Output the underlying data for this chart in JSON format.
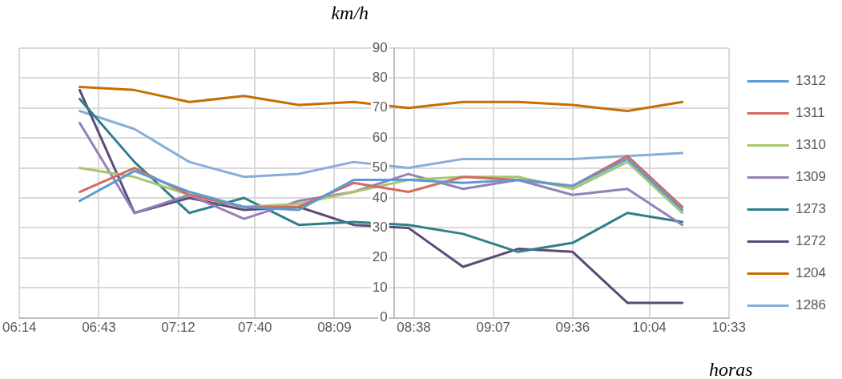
{
  "chart_data": {
    "type": "line",
    "xlabel": "horas",
    "ylabel": "km/h",
    "x": [
      6.6,
      6.933,
      7.267,
      7.6,
      7.933,
      8.267,
      8.6,
      8.933,
      9.267,
      9.6,
      9.933,
      10.267
    ],
    "xlim": [
      6.2333,
      10.55
    ],
    "xticks": [
      {
        "value": 6.2333,
        "label": "06:14"
      },
      {
        "value": 6.7167,
        "label": "06:43"
      },
      {
        "value": 7.2,
        "label": "07:12"
      },
      {
        "value": 7.6667,
        "label": "07:40"
      },
      {
        "value": 8.15,
        "label": "08:09"
      },
      {
        "value": 8.6333,
        "label": "08:38"
      },
      {
        "value": 9.1167,
        "label": "09:07"
      },
      {
        "value": 9.6,
        "label": "09:36"
      },
      {
        "value": 10.0667,
        "label": "10:04"
      },
      {
        "value": 10.55,
        "label": "10:33"
      }
    ],
    "ylim": [
      0,
      90
    ],
    "yticks": [
      0,
      10,
      20,
      30,
      40,
      50,
      60,
      70,
      80,
      90
    ],
    "grid": true,
    "legend": "right",
    "marker": "none",
    "line_style": "solid",
    "series": [
      {
        "name": "1312",
        "color": "#5b9bd5",
        "values": [
          39,
          49,
          42,
          37,
          36,
          46,
          46,
          45,
          46,
          44,
          53,
          36
        ]
      },
      {
        "name": "1311",
        "color": "#d46a60",
        "values": [
          42,
          50,
          41,
          37,
          37,
          45,
          42,
          47,
          46,
          44,
          54,
          37
        ]
      },
      {
        "name": "1310",
        "color": "#a8c66c",
        "values": [
          50,
          47,
          41,
          37,
          38,
          42,
          46,
          47,
          47,
          43,
          52,
          35
        ]
      },
      {
        "name": "1309",
        "color": "#9580b7",
        "values": [
          65,
          35,
          41,
          33,
          39,
          42,
          48,
          43,
          46,
          41,
          43,
          31
        ]
      },
      {
        "name": "1273",
        "color": "#2e7f8c",
        "values": [
          73,
          52,
          35,
          40,
          31,
          32,
          31,
          28,
          22,
          25,
          35,
          32
        ]
      },
      {
        "name": "1272",
        "color": "#5c4a78",
        "values": [
          76,
          35,
          40,
          36,
          37,
          31,
          30,
          17,
          23,
          22,
          5,
          5
        ]
      },
      {
        "name": "1204",
        "color": "#c86e00",
        "values": [
          77,
          76,
          72,
          74,
          71,
          72,
          70,
          72,
          72,
          71,
          69,
          72
        ]
      },
      {
        "name": "1286",
        "color": "#86aedb",
        "values": [
          69,
          63,
          52,
          47,
          48,
          52,
          50,
          53,
          53,
          53,
          54,
          55
        ]
      }
    ]
  }
}
